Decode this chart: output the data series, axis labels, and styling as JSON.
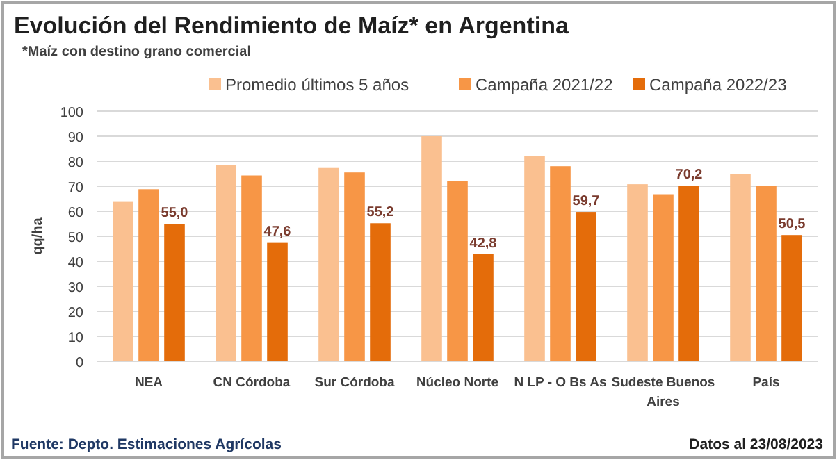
{
  "chart_data": {
    "type": "bar",
    "title": "Evolución del Rendimiento de Maíz* en Argentina",
    "subtitle": "*Maíz con destino grano comercial",
    "ylabel": "qq/ha",
    "categories": [
      "NEA",
      "CN Córdoba",
      "Sur Córdoba",
      "Núcleo Norte",
      "N LP - O Bs As",
      "Sudeste Buenos Aires",
      "País"
    ],
    "series": [
      {
        "name": "Promedio últimos 5 años",
        "color": "#fac090",
        "values": [
          64,
          78.5,
          77.3,
          90,
          82,
          70.8,
          74.8
        ]
      },
      {
        "name": "Campaña 2021/22",
        "color": "#f79646",
        "values": [
          68.8,
          74.3,
          75.5,
          72.2,
          78,
          66.8,
          70
        ]
      },
      {
        "name": "Campaña 2022/23",
        "color": "#e46c0a",
        "values": [
          55.0,
          47.6,
          55.2,
          42.8,
          59.7,
          70.2,
          50.5
        ],
        "value_labels": [
          "55,0",
          "47,6",
          "55,2",
          "42,8",
          "59,7",
          "70,2",
          "50,5"
        ]
      }
    ],
    "ylim": [
      0,
      100
    ],
    "yticks": [
      0,
      10,
      20,
      30,
      40,
      50,
      60,
      70,
      80,
      90,
      100
    ],
    "grid": "y",
    "legend": "top",
    "annotations": [
      "Fuente: Depto. Estimaciones Agrícolas",
      "Datos al 23/08/2023"
    ]
  }
}
